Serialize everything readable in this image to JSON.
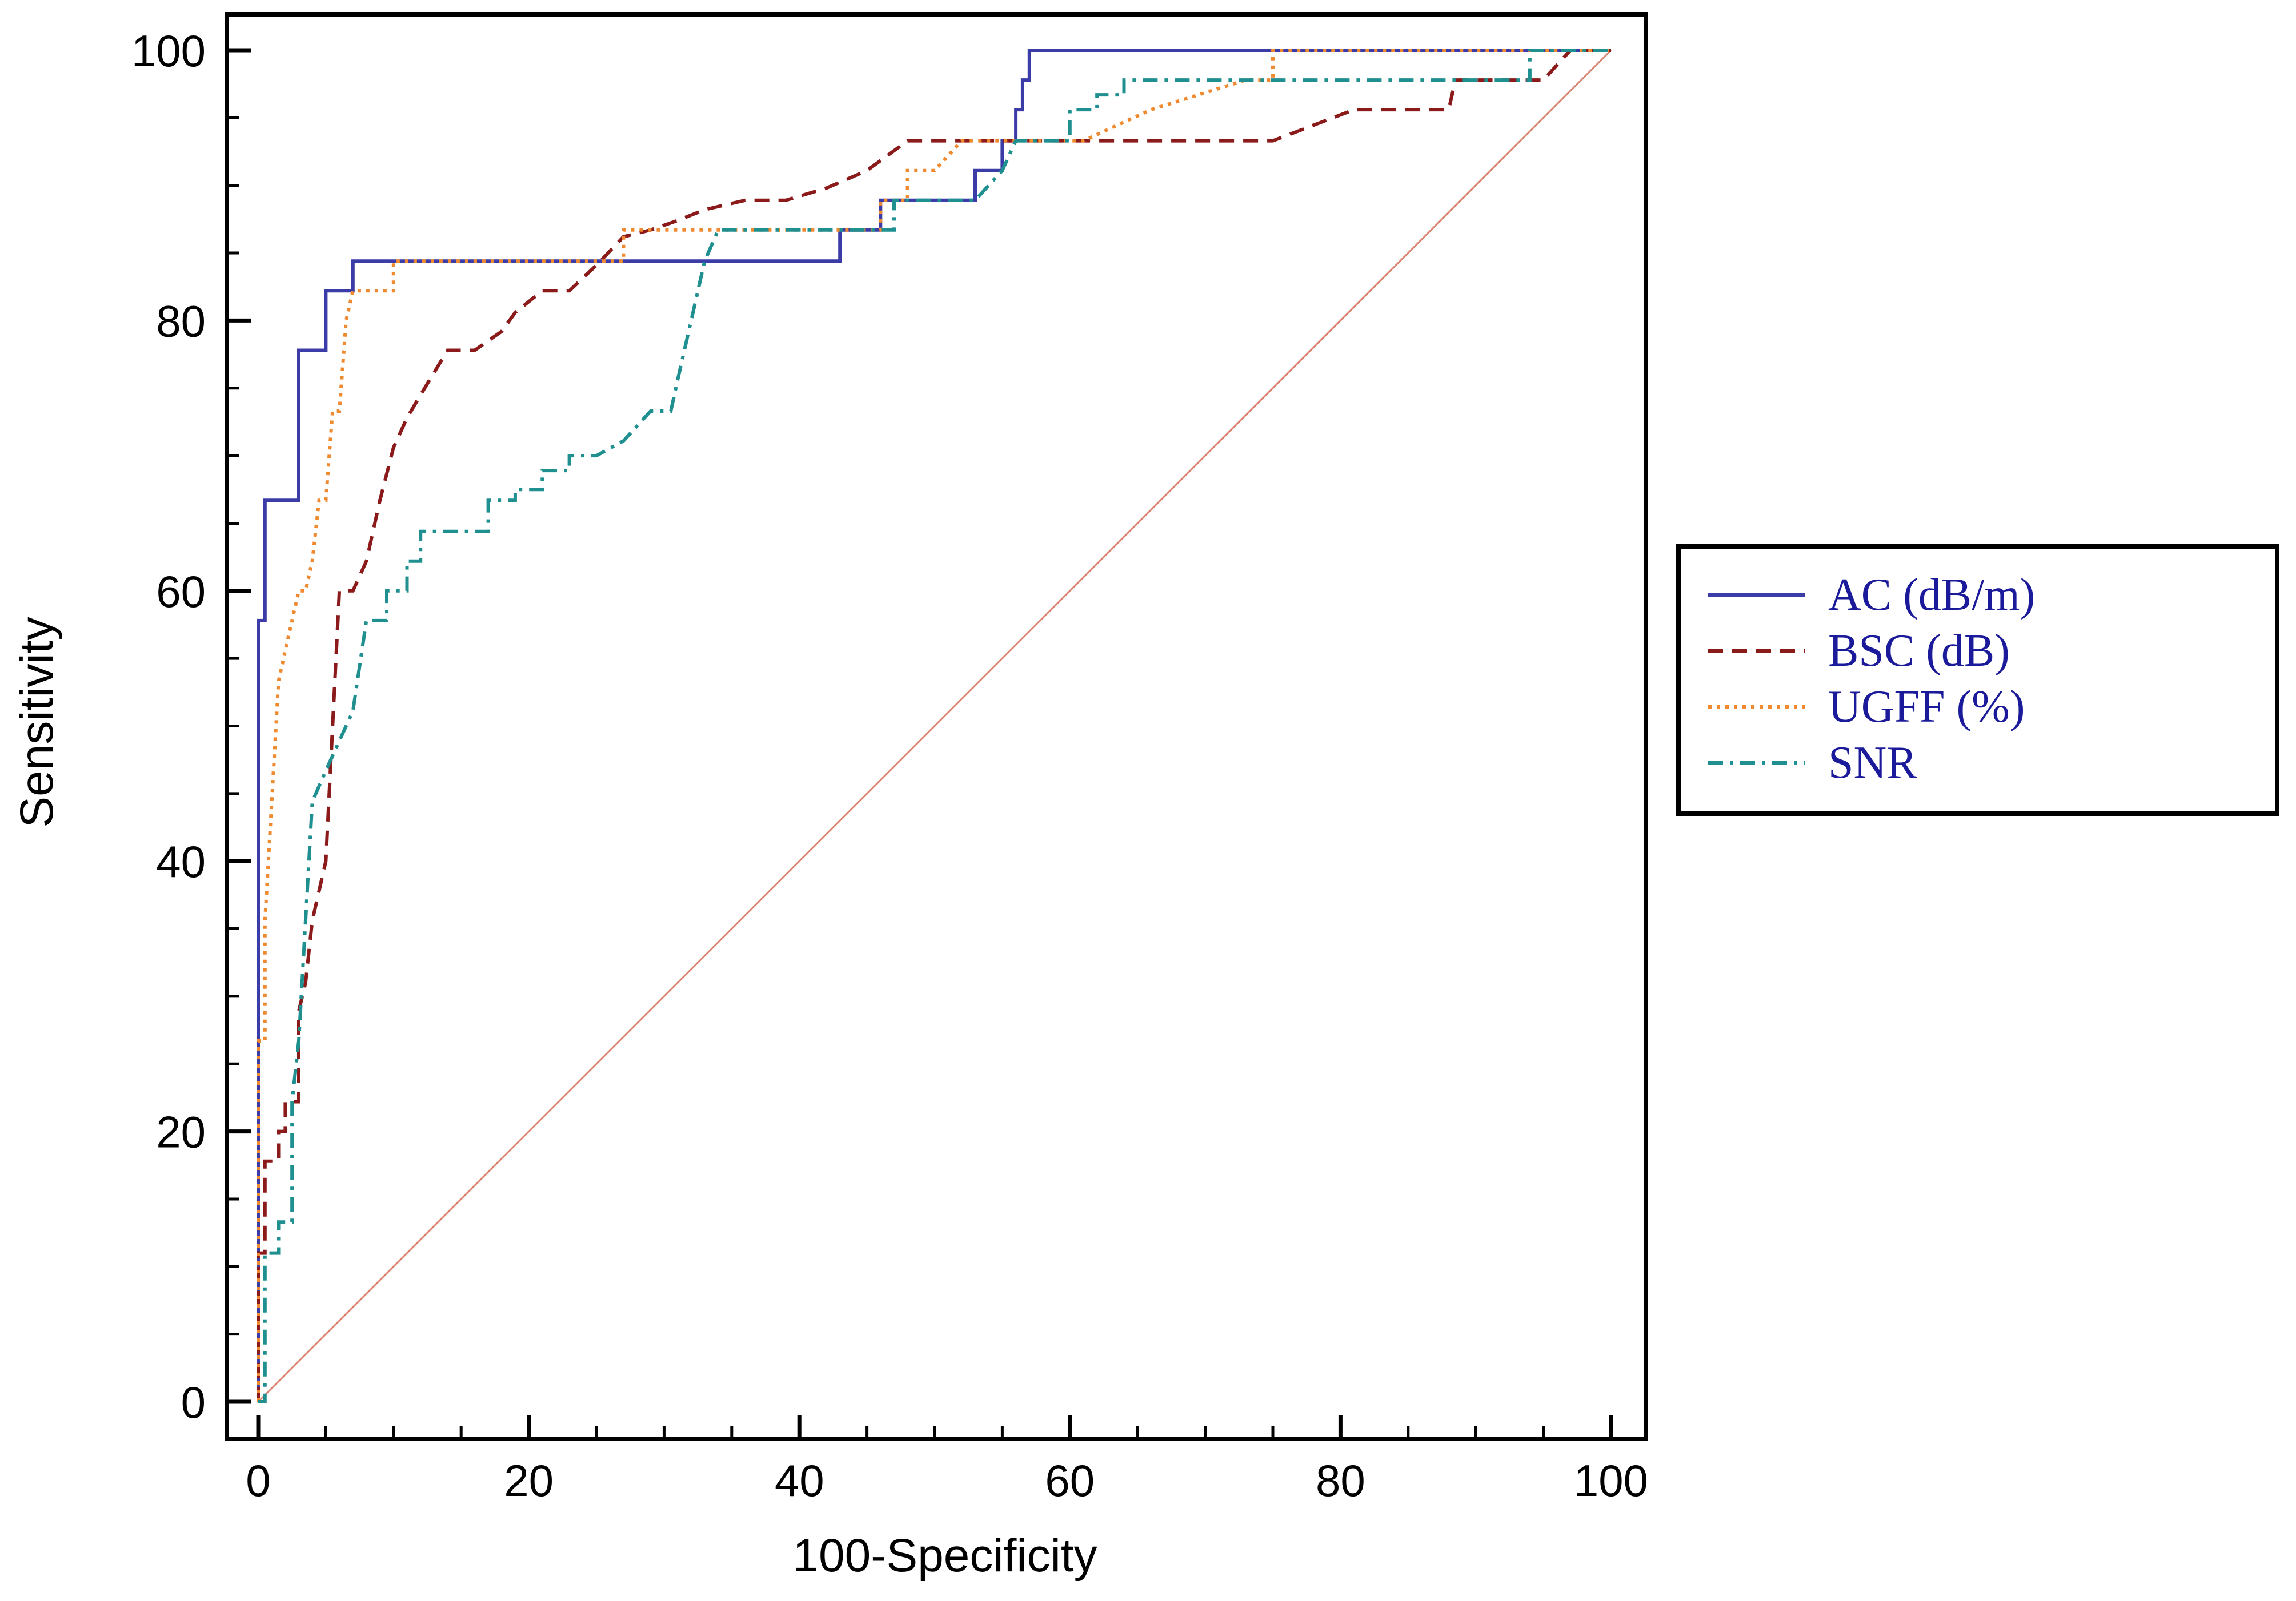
{
  "chart_data": {
    "type": "line",
    "title": "",
    "xlabel": "100-Specificity",
    "ylabel": "Sensitivity",
    "xlim": [
      0,
      100
    ],
    "ylim": [
      0,
      100
    ],
    "xticks": [
      0,
      20,
      40,
      60,
      80,
      100
    ],
    "yticks": [
      0,
      20,
      40,
      60,
      80,
      100
    ],
    "xtick_labels": [
      "0",
      "20",
      "40",
      "60",
      "80",
      "100"
    ],
    "ytick_labels": [
      "0",
      "20",
      "40",
      "60",
      "80",
      "100"
    ],
    "legend_position": "right",
    "reference_line": {
      "name": "Reference line",
      "x": [
        0,
        100
      ],
      "y": [
        0,
        100
      ],
      "color": "#d9826f",
      "style": "solid"
    },
    "series": [
      {
        "name": "AC (dB/m)",
        "color": "#3c3ca8",
        "style": "solid",
        "x": [
          0,
          0,
          0.5,
          0.5,
          1,
          1,
          3,
          3,
          5,
          5,
          7,
          7,
          43,
          43,
          46,
          46,
          53,
          53,
          55,
          55,
          56,
          56,
          56.5,
          56.5,
          57,
          57,
          100
        ],
        "y": [
          0,
          57.8,
          57.8,
          66.7,
          66.7,
          66.7,
          66.7,
          77.8,
          77.8,
          82.2,
          82.2,
          84.4,
          84.4,
          86.7,
          86.7,
          88.9,
          88.9,
          91.1,
          91.1,
          93.3,
          93.3,
          95.6,
          95.6,
          97.8,
          97.8,
          100,
          100
        ]
      },
      {
        "name": "BSC (dB)",
        "color": "#8b1a1a",
        "style": "dashed",
        "x": [
          0,
          0,
          0.5,
          0.5,
          1.5,
          1.5,
          2,
          2,
          3,
          3,
          3.5,
          4,
          5,
          6,
          7,
          8,
          9,
          10,
          11,
          12,
          14,
          16,
          18,
          19,
          21,
          23,
          25,
          27,
          29,
          31,
          33,
          36,
          39,
          42,
          45,
          48,
          51,
          53,
          75,
          81,
          88,
          88.5,
          95,
          97,
          100
        ],
        "y": [
          0,
          11,
          11,
          17.8,
          17.8,
          20,
          20,
          22.2,
          22.2,
          28.9,
          31,
          35.6,
          40,
          60,
          60,
          62.2,
          66.7,
          70.6,
          72.8,
          74.5,
          77.8,
          77.8,
          79.2,
          80.6,
          82.2,
          82.2,
          84.1,
          86.2,
          86.7,
          87.4,
          88.2,
          88.9,
          88.9,
          89.8,
          91.1,
          93.3,
          93.3,
          93.3,
          93.3,
          95.6,
          95.6,
          97.8,
          97.8,
          100,
          100
        ]
      },
      {
        "name": "UGFF (%)",
        "color": "#f08a30",
        "style": "dotted",
        "x": [
          0,
          0,
          0.5,
          0.5,
          1,
          1.5,
          2,
          2.5,
          3,
          3.5,
          4,
          4.5,
          5,
          5.5,
          6,
          6.5,
          7,
          7.5,
          8,
          10,
          10,
          27,
          27,
          46,
          46,
          48,
          48,
          50,
          50,
          52,
          52,
          61,
          61,
          66,
          66,
          73,
          75,
          75,
          100
        ],
        "y": [
          0,
          26.7,
          26.7,
          35.6,
          44.4,
          53.3,
          55.6,
          57.8,
          60,
          60,
          62.2,
          66.7,
          66.7,
          73.3,
          73.3,
          80,
          82.2,
          82.2,
          82.2,
          82.2,
          84.4,
          84.4,
          86.7,
          86.7,
          88.9,
          88.9,
          91.1,
          91.1,
          91.1,
          93.3,
          93.3,
          93.3,
          93.3,
          95.6,
          95.6,
          97.8,
          97.8,
          100,
          100
        ]
      },
      {
        "name": "SNR",
        "color": "#1f8f8f",
        "style": "dashdot",
        "x": [
          0,
          0.5,
          0.5,
          1.5,
          1.5,
          2.5,
          2.5,
          3,
          3.5,
          4,
          5,
          6,
          7,
          8,
          8,
          9.5,
          9.5,
          11,
          11,
          12,
          12,
          17,
          17,
          19,
          19,
          21,
          21,
          23,
          23,
          25,
          27,
          29,
          29,
          30.5,
          31,
          32,
          33,
          34,
          34,
          46,
          47,
          47,
          49,
          53,
          53,
          54,
          55,
          56,
          57,
          60,
          60,
          62,
          62,
          64,
          64,
          94,
          94,
          100
        ],
        "y": [
          0,
          0,
          11,
          11,
          13.3,
          13.3,
          22.2,
          26.7,
          35.6,
          44.4,
          46.7,
          48.9,
          51.1,
          57.8,
          57.8,
          57.8,
          60,
          60,
          62.2,
          62.2,
          64.4,
          64.4,
          66.7,
          66.7,
          67.5,
          67.5,
          68.9,
          68.9,
          70,
          70,
          71.1,
          73.3,
          73.3,
          73.3,
          75.6,
          80,
          84.4,
          86.7,
          86.7,
          86.7,
          86.7,
          88.9,
          88.9,
          88.9,
          88.9,
          90,
          91.1,
          93.3,
          93.3,
          93.3,
          95.6,
          95.6,
          96.7,
          96.7,
          97.8,
          97.8,
          100,
          100
        ]
      }
    ]
  }
}
